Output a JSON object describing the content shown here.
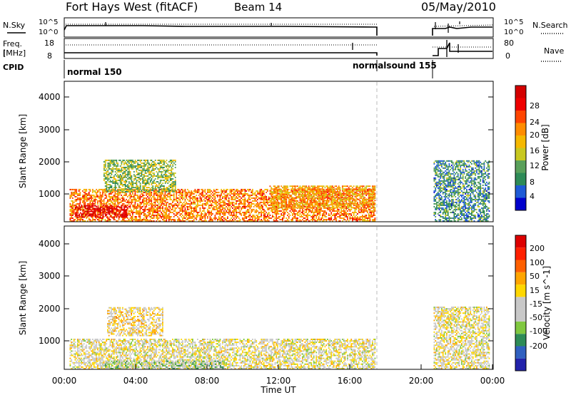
{
  "header": {
    "radar": "Fort Hays West (fitACF)",
    "beam": "Beam 14",
    "date": "05/May/2010"
  },
  "top_panels": {
    "nsky_label": "N.Sky",
    "nsky_ticks": [
      "10^5",
      "10^0"
    ],
    "nsearch_label": "N.Search",
    "freq_label_1": "Freq.",
    "freq_label_2": "[MHz]",
    "freq_ticks": [
      "18",
      "8"
    ],
    "nave_ticks": [
      "80",
      "0"
    ],
    "nave_label": "Nave",
    "cpid_label": "CPID",
    "cpid_modes": [
      "normal 150",
      "normalsound 155"
    ]
  },
  "colors": {
    "pow_scale": [
      "#0000cc",
      "#1f5bd6",
      "#2e8b57",
      "#5aa05a",
      "#c8c820",
      "#f5b800",
      "#ff8c00",
      "#ff4500",
      "#ee0000",
      "#d40000"
    ],
    "vel_scale": [
      "#2222aa",
      "#3060c0",
      "#2e8b57",
      "#80c840",
      "#c8c8c8",
      "#c8c8c8",
      "#ffd700",
      "#ffa500",
      "#ff6000",
      "#ff2000",
      "#dd0000"
    ]
  },
  "chart_data": [
    {
      "type": "heatmap",
      "title": "",
      "xlabel": "",
      "ylabel": "Slant Range [km]",
      "xlim": [
        "00:00",
        "24:00"
      ],
      "ylim": [
        180,
        4600
      ],
      "yticks": [
        "4000",
        "3000",
        "2000",
        "1000"
      ],
      "colorbar": {
        "label": "Power [dB]",
        "ticks": [
          "28",
          "24",
          "20",
          "16",
          "12",
          "8",
          "4"
        ],
        "range": [
          0,
          30
        ]
      },
      "regions": [
        {
          "t_start_h": 0.3,
          "t_end_h": 17.4,
          "r_start_km": 180,
          "r_end_km": 1200,
          "typical_value": 20
        },
        {
          "t_start_h": 0.6,
          "t_end_h": 3.5,
          "r_start_km": 300,
          "r_end_km": 700,
          "typical_value": 28
        },
        {
          "t_start_h": 2.2,
          "t_end_h": 6.2,
          "r_start_km": 1100,
          "r_end_km": 2100,
          "typical_value": 12
        },
        {
          "t_start_h": 11.5,
          "t_end_h": 17.4,
          "r_start_km": 600,
          "r_end_km": 1300,
          "typical_value": 18
        },
        {
          "t_start_h": 20.7,
          "t_end_h": 23.8,
          "r_start_km": 180,
          "r_end_km": 2100,
          "typical_value": 8
        }
      ]
    },
    {
      "type": "heatmap",
      "title": "",
      "xlabel": "Time UT",
      "ylabel": "Slant Range [km]",
      "xticks": [
        "00:00",
        "04:00",
        "08:00",
        "12:00",
        "16:00",
        "20:00",
        "00:00"
      ],
      "ylim": [
        180,
        4600
      ],
      "yticks": [
        "4000",
        "3000",
        "2000",
        "1000"
      ],
      "colorbar": {
        "label": "Velocity [m s^-1]",
        "ticks": [
          "200",
          "100",
          "50",
          "15",
          "-15",
          "-50",
          "-100",
          "-200"
        ],
        "range": [
          -250,
          250
        ]
      },
      "regions": [
        {
          "t_start_h": 0.3,
          "t_end_h": 17.4,
          "r_start_km": 180,
          "r_end_km": 1100,
          "typical_value": 0
        },
        {
          "t_start_h": 2.0,
          "t_end_h": 9.0,
          "r_start_km": 180,
          "r_end_km": 450,
          "typical_value": -60
        },
        {
          "t_start_h": 2.4,
          "t_end_h": 5.5,
          "r_start_km": 1200,
          "r_end_km": 2100,
          "typical_value": 30
        },
        {
          "t_start_h": 20.7,
          "t_end_h": 23.8,
          "r_start_km": 180,
          "r_end_km": 2100,
          "typical_value": 0
        }
      ]
    }
  ]
}
